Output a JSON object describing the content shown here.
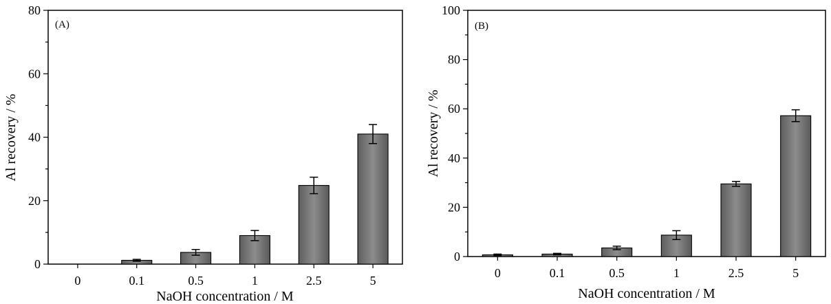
{
  "chart_data": [
    {
      "type": "bar",
      "panel_label": "(A)",
      "categories": [
        "0",
        "0.1",
        "0.5",
        "1",
        "2.5",
        "5"
      ],
      "values": [
        0,
        1.2,
        3.7,
        9.0,
        24.8,
        41.0
      ],
      "errors": [
        0,
        0.3,
        0.9,
        1.6,
        2.6,
        3.0
      ],
      "xlabel": "NaOH concentration / M",
      "ylabel": "Al recovery / %",
      "ylim": [
        0,
        80
      ],
      "yticks": [
        "0",
        "20",
        "40",
        "60",
        "80"
      ],
      "grid": false,
      "bar_color": "#757575"
    },
    {
      "type": "bar",
      "panel_label": "(B)",
      "categories": [
        "0",
        "0.1",
        "0.5",
        "1",
        "2.5",
        "5"
      ],
      "values": [
        0.7,
        1.0,
        3.5,
        8.7,
        29.5,
        57.2
      ],
      "errors": [
        0.3,
        0.3,
        0.7,
        1.8,
        1.0,
        2.4
      ],
      "xlabel": "NaOH concentration / M",
      "ylabel": "Al recovery / %",
      "ylim": [
        0,
        100
      ],
      "yticks": [
        "0",
        "20",
        "40",
        "60",
        "80",
        "100"
      ],
      "grid": false,
      "bar_color": "#757575"
    }
  ]
}
